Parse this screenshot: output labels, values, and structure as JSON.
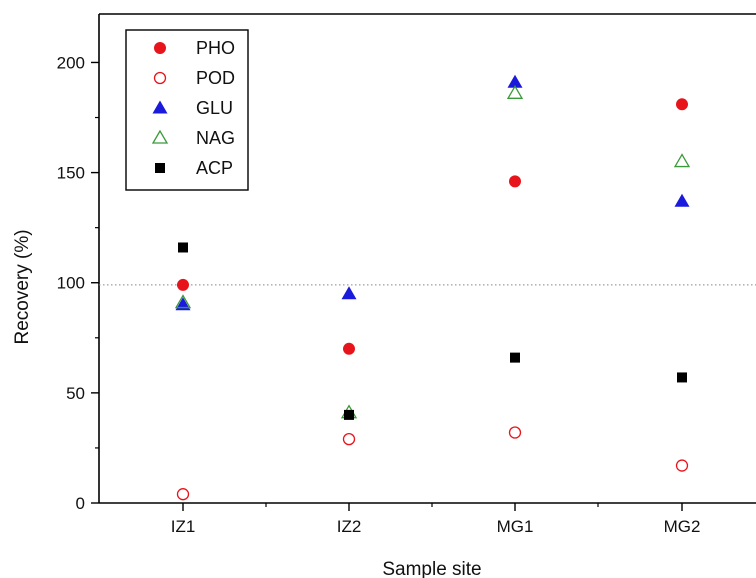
{
  "chart_data": {
    "type": "scatter",
    "title": "",
    "xlabel": "Sample site",
    "ylabel": "Recovery (%)",
    "categories": [
      "IZ1",
      "IZ2",
      "MG1",
      "MG2"
    ],
    "ylim": [
      0,
      222
    ],
    "yticks": [
      0,
      50,
      100,
      150,
      200
    ],
    "reference_line": 99,
    "legend_position": "top-left",
    "series": [
      {
        "name": "PHO",
        "marker": "filled-circle",
        "color": "#e8141b",
        "values": [
          99,
          70,
          146,
          181
        ]
      },
      {
        "name": "POD",
        "marker": "open-circle",
        "color": "#e8141b",
        "values": [
          4,
          29,
          32,
          17
        ]
      },
      {
        "name": "GLU",
        "marker": "filled-triangle",
        "color": "#1a1adc",
        "values": [
          90,
          95,
          191,
          137
        ]
      },
      {
        "name": "NAG",
        "marker": "open-triangle",
        "color": "#3a9a3a",
        "values": [
          91,
          41,
          186,
          155
        ]
      },
      {
        "name": "ACP",
        "marker": "filled-square",
        "color": "#000000",
        "values": [
          116,
          40,
          66,
          57
        ]
      }
    ]
  }
}
